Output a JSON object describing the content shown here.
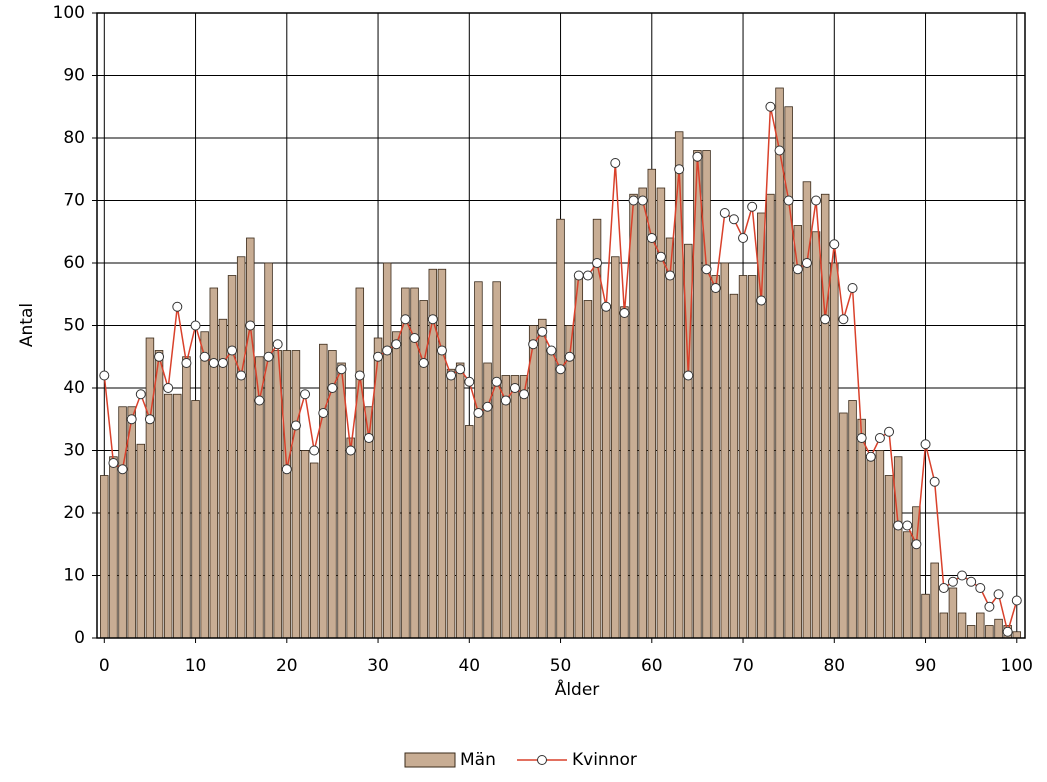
{
  "chart_data": {
    "type": "bar-line",
    "x_label": "Ålder",
    "y_label": "Antal",
    "x": [
      0,
      1,
      2,
      3,
      4,
      5,
      6,
      7,
      8,
      9,
      10,
      11,
      12,
      13,
      14,
      15,
      16,
      17,
      18,
      19,
      20,
      21,
      22,
      23,
      24,
      25,
      26,
      27,
      28,
      29,
      30,
      31,
      32,
      33,
      34,
      35,
      36,
      37,
      38,
      39,
      40,
      41,
      42,
      43,
      44,
      45,
      46,
      47,
      48,
      49,
      50,
      51,
      52,
      53,
      54,
      55,
      56,
      57,
      58,
      59,
      60,
      61,
      62,
      63,
      64,
      65,
      66,
      67,
      68,
      69,
      70,
      71,
      72,
      73,
      74,
      75,
      76,
      77,
      78,
      79,
      80,
      81,
      82,
      83,
      84,
      85,
      86,
      87,
      88,
      89,
      90,
      91,
      92,
      93,
      94,
      95,
      96,
      97,
      98,
      99,
      100
    ],
    "series": [
      {
        "name": "Män",
        "kind": "bar",
        "color": "#c8ad94",
        "values": [
          26,
          29,
          37,
          37,
          31,
          48,
          46,
          39,
          39,
          45,
          38,
          49,
          56,
          51,
          58,
          61,
          64,
          45,
          60,
          46,
          46,
          46,
          30,
          28,
          47,
          46,
          44,
          32,
          56,
          37,
          48,
          60,
          49,
          56,
          56,
          54,
          59,
          59,
          43,
          44,
          34,
          57,
          44,
          57,
          42,
          42,
          42,
          50,
          51,
          46,
          67,
          50,
          58,
          54,
          67,
          53,
          61,
          53,
          71,
          72,
          75,
          72,
          64,
          81,
          63,
          78,
          78,
          58,
          60,
          55,
          58,
          58,
          68,
          71,
          88,
          85,
          66,
          73,
          65,
          71,
          60,
          36,
          38,
          35,
          29,
          30,
          26,
          29,
          17,
          21,
          7,
          12,
          4,
          8,
          4,
          2,
          4,
          2,
          3,
          2,
          1
        ]
      },
      {
        "name": "Kvinnor",
        "kind": "line",
        "color": "#d9412b",
        "values": [
          42,
          28,
          27,
          35,
          39,
          35,
          45,
          40,
          53,
          44,
          50,
          45,
          44,
          44,
          46,
          42,
          50,
          38,
          45,
          47,
          27,
          34,
          39,
          30,
          36,
          40,
          43,
          30,
          42,
          32,
          45,
          46,
          47,
          51,
          48,
          44,
          51,
          46,
          42,
          43,
          41,
          36,
          37,
          41,
          38,
          40,
          39,
          47,
          49,
          46,
          43,
          45,
          58,
          58,
          60,
          53,
          76,
          52,
          70,
          70,
          64,
          61,
          58,
          75,
          42,
          77,
          59,
          56,
          68,
          67,
          64,
          69,
          54,
          85,
          78,
          70,
          59,
          60,
          70,
          51,
          63,
          51,
          56,
          32,
          29,
          32,
          33,
          18,
          18,
          15,
          31,
          25,
          8,
          9,
          10,
          9,
          8,
          5,
          7,
          1,
          6
        ]
      }
    ],
    "xlim": [
      -0.8,
      100.9
    ],
    "xticks": [
      0,
      10,
      20,
      30,
      40,
      50,
      60,
      70,
      80,
      90,
      100
    ],
    "ylim": [
      0,
      100
    ],
    "yticks": [
      0,
      10,
      20,
      30,
      40,
      50,
      60,
      70,
      80,
      90,
      100
    ],
    "grid": true,
    "legend": "bottom"
  }
}
